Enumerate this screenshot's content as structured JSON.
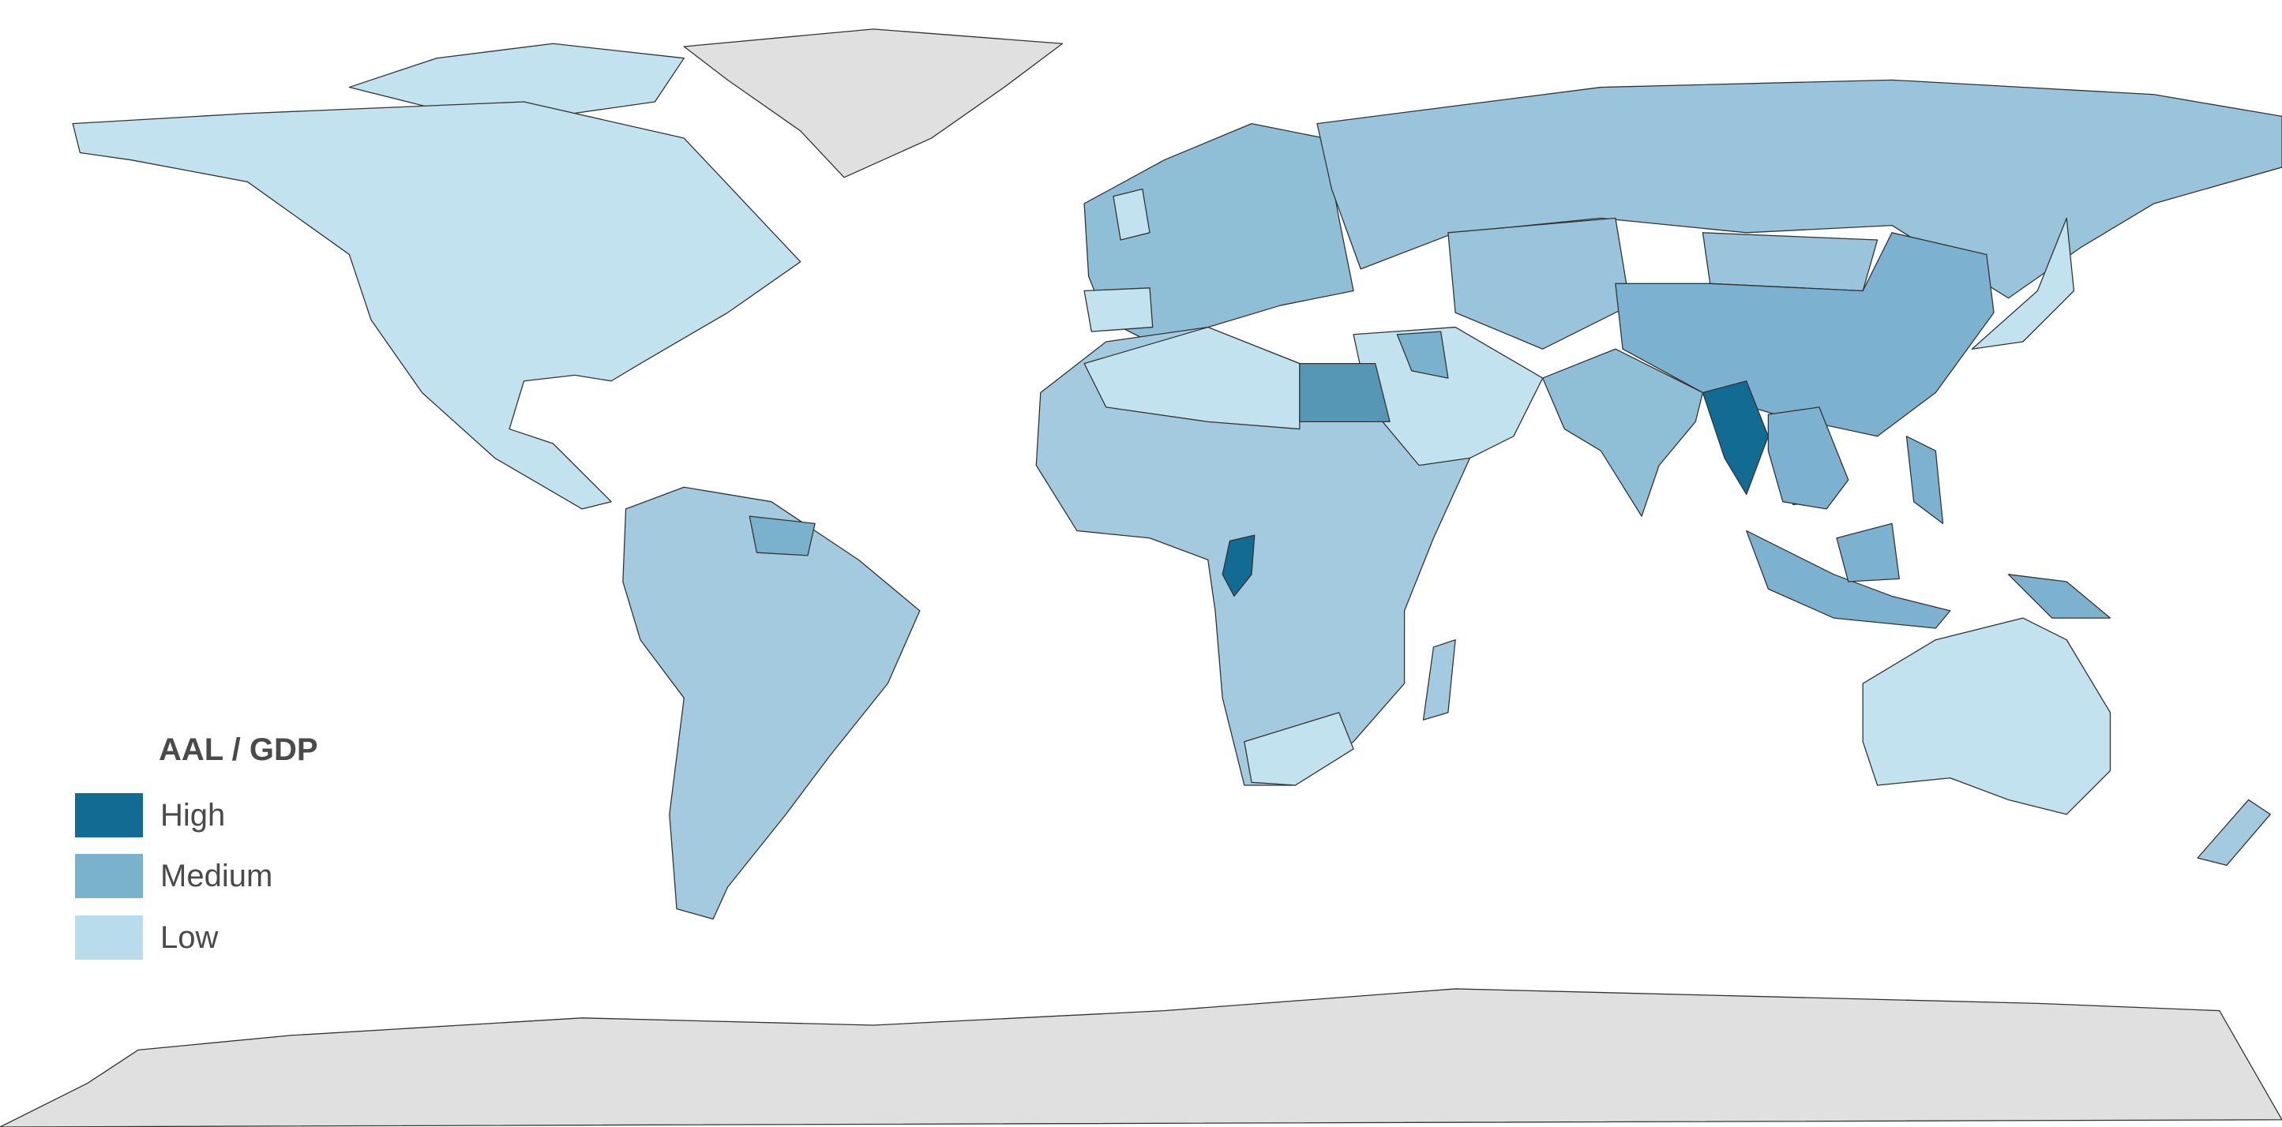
{
  "legend": {
    "title": "AAL / GDP",
    "items": [
      {
        "label": "High",
        "color": "#126b92"
      },
      {
        "label": "Medium",
        "color": "#7ab1cc"
      },
      {
        "label": "Low",
        "color": "#b8dcec"
      }
    ]
  },
  "colors": {
    "no_data": "#e0e0e0",
    "border": "#333333",
    "ocean": "#ffffff"
  }
}
